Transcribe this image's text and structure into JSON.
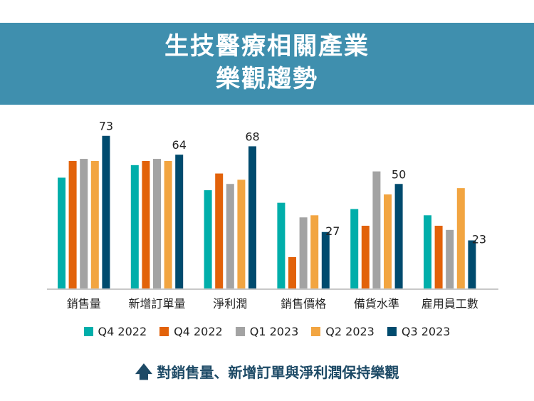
{
  "title_lines": [
    "生技醫療相關產業",
    "樂觀趨勢"
  ],
  "chart_data": {
    "type": "bar",
    "categories": [
      "銷售量",
      "新增訂單量",
      "淨利潤",
      "銷售價格",
      "備貨水準",
      "雇用員工數"
    ],
    "series": [
      {
        "name": "Q4 2022",
        "color": "#00aeaa",
        "values": [
          53,
          59,
          47,
          41,
          38,
          35
        ]
      },
      {
        "name": "Q4 2022",
        "color": "#e2620a",
        "values": [
          61,
          61,
          55,
          15,
          30,
          30
        ]
      },
      {
        "name": "Q1 2023",
        "color": "#a3a3a3",
        "values": [
          62,
          62,
          50,
          34,
          56,
          28
        ]
      },
      {
        "name": "Q2 2023",
        "color": "#f2a541",
        "values": [
          61,
          61,
          52,
          35,
          45,
          48
        ]
      },
      {
        "name": "Q3 2023",
        "color": "#004b6e",
        "values": [
          73,
          64,
          68,
          27,
          50,
          23
        ],
        "labels": [
          "73",
          "64",
          "68",
          "27",
          "50",
          "23"
        ]
      }
    ],
    "ylim": [
      0,
      75
    ],
    "grid": false,
    "legend": "bottom"
  },
  "footer": {
    "icon": "arrow-up-icon",
    "text": "對銷售量、新增訂單與淨利潤保持樂觀"
  }
}
